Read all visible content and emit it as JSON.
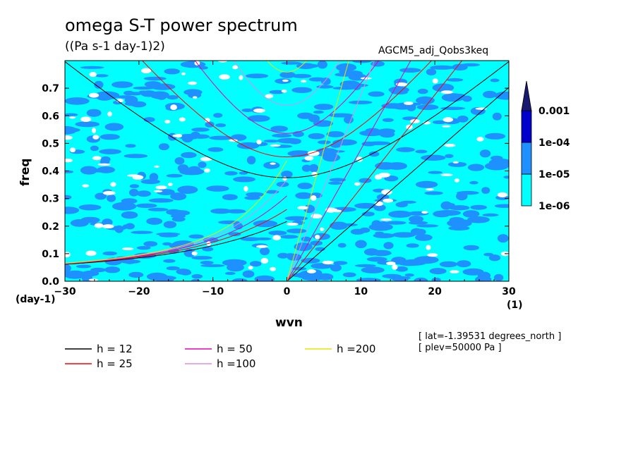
{
  "chart_data": {
    "type": "heatmap",
    "title": "omega S-T power spectrum",
    "subtitle": "((Pa s-1 day-1)2)",
    "dataset_label": "AGCM5_adj_Qobs3keq",
    "xlabel": "wvn",
    "ylabel": "freq",
    "x_unit": "(1)",
    "y_unit": "(day-1)",
    "xlim": [
      -30,
      30
    ],
    "ylim": [
      0,
      0.8
    ],
    "x_ticks": [
      -30,
      -20,
      -10,
      0,
      10,
      20,
      30
    ],
    "y_ticks": [
      0.0,
      0.1,
      0.2,
      0.3,
      0.4,
      0.5,
      0.6,
      0.7
    ],
    "x_tick_labels": [
      "−30",
      "−20",
      "−10",
      "0",
      "10",
      "20",
      "30"
    ],
    "y_tick_labels": [
      "0.0",
      "0.1",
      "0.2",
      "0.3",
      "0.4",
      "0.5",
      "0.6",
      "0.7"
    ],
    "colorbar": {
      "levels": [
        "1e-06",
        "1e-05",
        "1e-04",
        "0.001"
      ],
      "colors": [
        "#00ffff",
        "#1e90ff",
        "#0000cd",
        "#191970"
      ]
    },
    "dispersion_curves": [
      {
        "label": "h = 12",
        "color": "#000000"
      },
      {
        "label": "h = 25",
        "color": "#ff0000"
      },
      {
        "label": "h = 50",
        "color": "#e600b4"
      },
      {
        "label": "h =100",
        "color": "#e08ce6"
      },
      {
        "label": "h =200",
        "color": "#e6e600"
      }
    ],
    "annotations": [
      "[ lat=-1.39531 degrees_north ]",
      "[ plev=50000 Pa ]"
    ]
  }
}
